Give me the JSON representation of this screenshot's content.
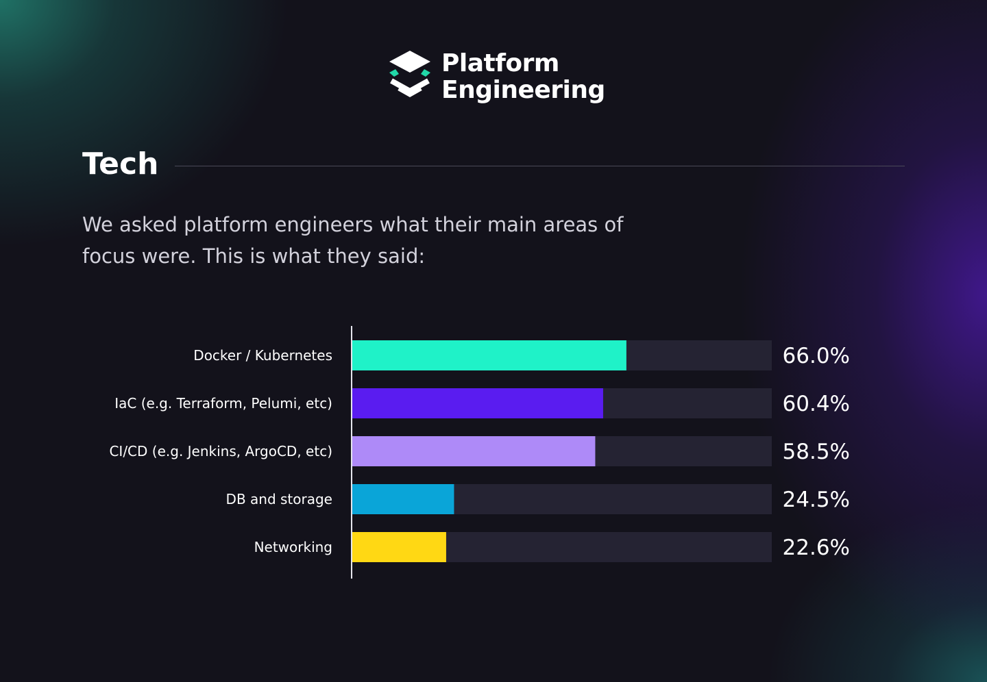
{
  "logo": {
    "line1": "Platform",
    "line2": "Engineering"
  },
  "section": {
    "title": "Tech",
    "intro": "We asked platform engineers what their main areas of focus were. This is what they said:"
  },
  "colors": {
    "background": "#13121b",
    "track": "#252333",
    "axis": "#e6e6ee",
    "logo_accent": "#21d8a8"
  },
  "chart_data": {
    "type": "bar",
    "orientation": "horizontal",
    "categories": [
      "Docker / Kubernetes",
      "IaC (e.g. Terraform, Pelumi, etc)",
      "CI/CD (e.g. Jenkins, ArgoCD, etc)",
      "DB and storage",
      "Networking"
    ],
    "values": [
      66.0,
      60.4,
      58.5,
      24.5,
      22.6
    ],
    "value_labels": [
      "66.0%",
      "60.4%",
      "58.5%",
      "24.5%",
      "22.6%"
    ],
    "colors": [
      "#1ff2c8",
      "#5a1cf0",
      "#ae8af8",
      "#0aa5d8",
      "#ffd814"
    ],
    "xlim": [
      0,
      100
    ],
    "grid": false,
    "legend": "none"
  }
}
